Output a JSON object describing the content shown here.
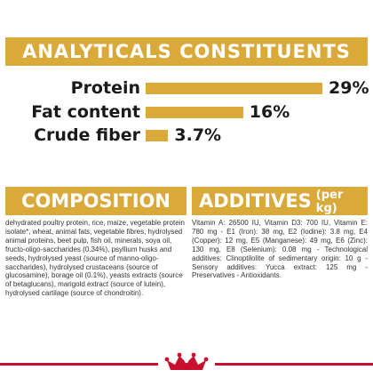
{
  "analytics": {
    "title": "ANALYTICALS CONSTITUENTS",
    "rows": [
      {
        "label": "Protein",
        "value": "29%",
        "percent": 29
      },
      {
        "label": "Fat content",
        "value": "16%",
        "percent": 16
      },
      {
        "label": "Crude fiber",
        "value": "3.7%",
        "percent": 3.7
      }
    ]
  },
  "composition": {
    "title": "COMPOSITION",
    "text": "dehydrated poultry protein, rice, maize, vegetable protein isolate*, wheat, animal fats, vegetable fibres, hydrolysed animal proteins, beet pulp, fish oil, minerals, soya oil, fructo-oligo-saccharides (0.34%), psyllium husks and seeds, hydrolysed yeast (source of manno-oligo-saccharides), hydrolysed crustaceans (source of glucosamine), borage oil (0.1%), yeasts extracts (source of betaglucans), marigold extract (source of lutein), hydrolysed cartilage (source of chondroitin)."
  },
  "additives": {
    "title": "ADDITIVES",
    "unit": "(per kg)",
    "text": "Vitamin A: 26500 IU, Vitamin D3: 700 IU, Vitamin E: 780 mg - E1 (Iron): 38 mg, E2 (Iodine): 3.8 mg, E4 (Copper): 12 mg, E5 (Manganese): 49 mg, E6 (Zinc): 130 mg, E8 (Selenium): 0.08 mg - Technological additives: Clinoptilolite of sedimentary origin: 10 g - Sensory additives: Yucca extract: 125 mg - Preservatives - Antioxidants."
  },
  "colors": {
    "accent": "#d9a93a",
    "brand_red": "#c8102e",
    "text": "#1a1a1a"
  },
  "icons": {
    "logo": "royal-canin-crown-logo"
  }
}
